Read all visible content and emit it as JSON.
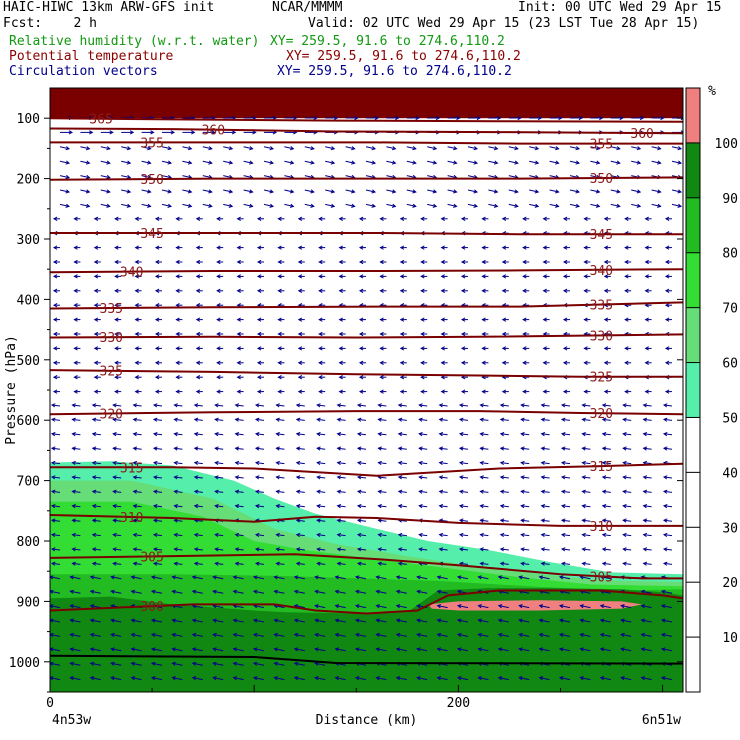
{
  "header": {
    "model": "HAIC-HIWC 13km ARW-GFS init",
    "org": "NCAR/MMMM",
    "init": "Init: 00 UTC Wed 29 Apr 15",
    "fcst": "Fcst:    2 h",
    "valid": "Valid: 02 UTC Wed 29 Apr 15 (23 LST Tue 28 Apr 15)"
  },
  "fields": [
    {
      "name": "Relative humidity (w.r.t. water)",
      "xy": "XY= 259.5, 91.6 to 274.6,110.2",
      "color": "#119911"
    },
    {
      "name": "Potential temperature",
      "xy": "XY= 259.5, 91.6 to 274.6,110.2",
      "color": "#8b0000"
    },
    {
      "name": "Circulation vectors",
      "xy": "XY= 259.5, 91.6 to 274.6,110.2",
      "color": "#00008b"
    }
  ],
  "chart_data": {
    "type": "heatmap",
    "xlabel": "Distance (km)",
    "ylabel": "Pressure (hPa)",
    "x_ticks": [
      0,
      200
    ],
    "x_range": [
      0,
      310
    ],
    "x_end_labels": {
      "left": "4n53w",
      "right": "6n51w"
    },
    "y_ticks": [
      100,
      200,
      300,
      400,
      500,
      600,
      700,
      800,
      900,
      1000
    ],
    "y_range": [
      50,
      1050
    ],
    "colorbar": {
      "unit": "%",
      "ticks": [
        10,
        20,
        30,
        40,
        50,
        60,
        70,
        80,
        90,
        100
      ],
      "bins": [
        {
          "from": 50,
          "to": 60,
          "color": "#55eeaa"
        },
        {
          "from": 60,
          "to": 70,
          "color": "#66dd77"
        },
        {
          "from": 70,
          "to": 80,
          "color": "#33dd33"
        },
        {
          "from": 80,
          "to": 90,
          "color": "#22bb22"
        },
        {
          "from": 90,
          "to": 100,
          "color": "#118811"
        },
        {
          "from": 100,
          "to": 110,
          "color": "#f08080"
        }
      ]
    },
    "rh_regions": [
      {
        "level": 50,
        "color": "#55eeaa",
        "points": [
          [
            0,
            670
          ],
          [
            30,
            668
          ],
          [
            60,
            675
          ],
          [
            90,
            700
          ],
          [
            110,
            730
          ],
          [
            130,
            755
          ],
          [
            160,
            780
          ],
          [
            185,
            800
          ],
          [
            215,
            815
          ],
          [
            245,
            835
          ],
          [
            275,
            852
          ],
          [
            310,
            855
          ],
          [
            310,
            1050
          ],
          [
            0,
            1050
          ]
        ]
      },
      {
        "level": 60,
        "color": "#66dd77",
        "points": [
          [
            0,
            700
          ],
          [
            40,
            700
          ],
          [
            80,
            730
          ],
          [
            110,
            780
          ],
          [
            140,
            805
          ],
          [
            175,
            825
          ],
          [
            205,
            840
          ],
          [
            240,
            855
          ],
          [
            270,
            865
          ],
          [
            310,
            868
          ],
          [
            310,
            1050
          ],
          [
            0,
            1050
          ]
        ]
      },
      {
        "level": 70,
        "color": "#33dd33",
        "points": [
          [
            0,
            735
          ],
          [
            40,
            735
          ],
          [
            75,
            760
          ],
          [
            100,
            800
          ],
          [
            125,
            815
          ],
          [
            160,
            830
          ],
          [
            195,
            845
          ],
          [
            230,
            860
          ],
          [
            265,
            872
          ],
          [
            310,
            875
          ],
          [
            310,
            1050
          ],
          [
            0,
            1050
          ]
        ]
      },
      {
        "level": 80,
        "color": "#22bb22",
        "points": [
          [
            0,
            855
          ],
          [
            60,
            855
          ],
          [
            115,
            858
          ],
          [
            150,
            862
          ],
          [
            190,
            866
          ],
          [
            240,
            876
          ],
          [
            280,
            882
          ],
          [
            310,
            880
          ],
          [
            310,
            1050
          ],
          [
            0,
            1050
          ]
        ]
      },
      {
        "level": 90,
        "color": "#118811",
        "points": [
          [
            0,
            895
          ],
          [
            30,
            892
          ],
          [
            60,
            905
          ],
          [
            100,
            915
          ],
          [
            115,
            918
          ],
          [
            150,
            920
          ],
          [
            175,
            918
          ],
          [
            190,
            882
          ],
          [
            215,
            878
          ],
          [
            245,
            878
          ],
          [
            280,
            880
          ],
          [
            300,
            885
          ],
          [
            310,
            890
          ],
          [
            310,
            1000
          ],
          [
            0,
            1000
          ]
        ]
      },
      {
        "level": 90,
        "color": "#118811",
        "points": [
          [
            0,
            1000
          ],
          [
            310,
            1000
          ],
          [
            310,
            1050
          ],
          [
            0,
            1050
          ]
        ]
      },
      {
        "level": 100,
        "color": "#f08080",
        "points": [
          [
            185,
            905
          ],
          [
            200,
            900
          ],
          [
            240,
            898
          ],
          [
            280,
            900
          ],
          [
            290,
            905
          ],
          [
            280,
            912
          ],
          [
            240,
            915
          ],
          [
            200,
            915
          ],
          [
            187,
            912
          ]
        ]
      }
    ],
    "theta_lines": [
      {
        "label": "300",
        "label_x": 50,
        "points": [
          [
            0,
            915
          ],
          [
            70,
            905
          ],
          [
            110,
            905
          ],
          [
            130,
            915
          ],
          [
            155,
            920
          ],
          [
            180,
            915
          ],
          [
            195,
            890
          ],
          [
            220,
            882
          ],
          [
            270,
            882
          ],
          [
            300,
            890
          ],
          [
            310,
            895
          ]
        ]
      },
      {
        "label": "305",
        "label_x": 50,
        "label_x2": 270,
        "points": [
          [
            0,
            828
          ],
          [
            60,
            825
          ],
          [
            120,
            822
          ],
          [
            160,
            830
          ],
          [
            200,
            840
          ],
          [
            250,
            855
          ],
          [
            290,
            862
          ],
          [
            310,
            862
          ]
        ]
      },
      {
        "label": "310",
        "label_x": 40,
        "label_x2": 270,
        "points": [
          [
            0,
            757
          ],
          [
            60,
            762
          ],
          [
            100,
            768
          ],
          [
            130,
            760
          ],
          [
            160,
            762
          ],
          [
            200,
            770
          ],
          [
            250,
            775
          ],
          [
            310,
            775
          ]
        ]
      },
      {
        "label": "315",
        "label_x": 40,
        "label_x2": 270,
        "points": [
          [
            0,
            678
          ],
          [
            60,
            678
          ],
          [
            100,
            680
          ],
          [
            160,
            692
          ],
          [
            220,
            680
          ],
          [
            270,
            676
          ],
          [
            310,
            672
          ]
        ]
      },
      {
        "label": "320",
        "label_x": 30,
        "label_x2": 270,
        "points": [
          [
            0,
            590
          ],
          [
            80,
            587
          ],
          [
            150,
            585
          ],
          [
            210,
            585
          ],
          [
            260,
            588
          ],
          [
            310,
            590
          ]
        ]
      },
      {
        "label": "325",
        "label_x": 30,
        "label_x2": 270,
        "points": [
          [
            0,
            517
          ],
          [
            80,
            520
          ],
          [
            150,
            524
          ],
          [
            210,
            526
          ],
          [
            260,
            528
          ],
          [
            310,
            528
          ]
        ]
      },
      {
        "label": "330",
        "label_x": 30,
        "label_x2": 270,
        "points": [
          [
            0,
            463
          ],
          [
            80,
            462
          ],
          [
            150,
            463
          ],
          [
            210,
            462
          ],
          [
            310,
            458
          ]
        ]
      },
      {
        "label": "335",
        "label_x": 30,
        "label_x2": 270,
        "points": [
          [
            0,
            415
          ],
          [
            80,
            413
          ],
          [
            160,
            412
          ],
          [
            230,
            412
          ],
          [
            310,
            405
          ]
        ]
      },
      {
        "label": "340",
        "label_x": 40,
        "label_x2": 270,
        "points": [
          [
            0,
            355
          ],
          [
            80,
            353
          ],
          [
            160,
            353
          ],
          [
            230,
            352
          ],
          [
            310,
            350
          ]
        ]
      },
      {
        "label": "345",
        "label_x": 50,
        "label_x2": 270,
        "points": [
          [
            0,
            290
          ],
          [
            80,
            290
          ],
          [
            160,
            290
          ],
          [
            230,
            292
          ],
          [
            310,
            292
          ]
        ]
      },
      {
        "label": "350",
        "label_x": 50,
        "label_x2": 270,
        "points": [
          [
            0,
            202
          ],
          [
            80,
            200
          ],
          [
            160,
            200
          ],
          [
            230,
            200
          ],
          [
            310,
            198
          ]
        ]
      },
      {
        "label": "355",
        "label_x": 50,
        "label_x2": 270,
        "points": [
          [
            0,
            140
          ],
          [
            80,
            140
          ],
          [
            160,
            140
          ],
          [
            230,
            142
          ],
          [
            310,
            142
          ]
        ]
      },
      {
        "label": "360",
        "label_x": 80,
        "label_x2": 290,
        "points": [
          [
            0,
            117
          ],
          [
            60,
            118
          ],
          [
            140,
            122
          ],
          [
            220,
            123
          ],
          [
            310,
            125
          ]
        ]
      },
      {
        "label": "365",
        "label_x": 25,
        "points": [
          [
            0,
            100
          ],
          [
            60,
            102
          ],
          [
            140,
            104
          ],
          [
            220,
            105
          ],
          [
            310,
            106
          ]
        ]
      }
    ],
    "top_band": {
      "from": 50,
      "to": 100,
      "color": "#7a0000"
    },
    "arrow_color": "#00008b"
  }
}
